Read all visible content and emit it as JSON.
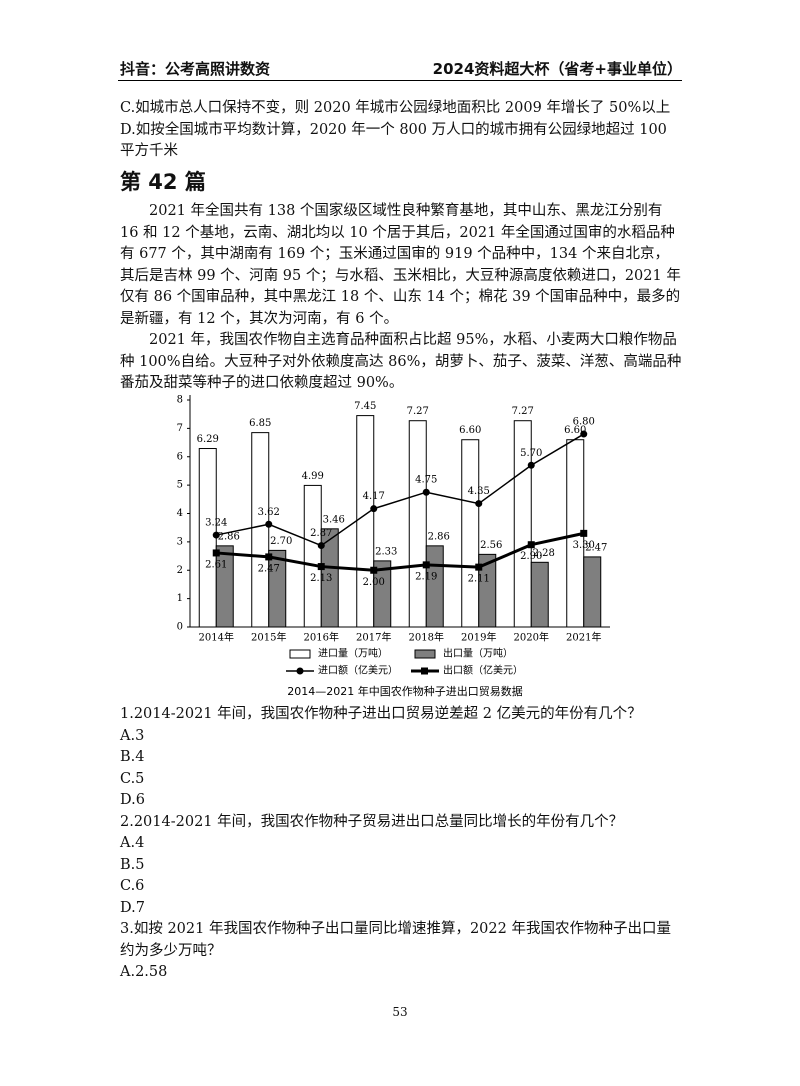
{
  "header": {
    "left": "抖音：公考高照讲数资",
    "right": "2024资料超大杯（省考+事业单位）"
  },
  "prev_options": [
    "C.如城市总人口保持不变，则 2020 年城市公园绿地面积比 2009 年增长了 50%以上",
    "D.如按全国城市平均数计算，2020 年一个 800 万人口的城市拥有公园绿地超过 100 平方千米"
  ],
  "section_title": "第 42 篇",
  "paragraphs": [
    "2021 年全国共有 138 个国家级区域性良种繁育基地，其中山东、黑龙江分别有 16 和 12 个基地，云南、湖北均以 10 个居于其后，2021 年全国通过国审的水稻品种有 677 个，其中湖南有 169 个；玉米通过国审的 919 个品种中，134 个来自北京，其后是吉林 99 个、河南 95 个；与水稻、玉米相比，大豆种源高度依赖进口，2021 年仅有 86 个国审品种，其中黑龙江 18 个、山东 14 个；棉花 39 个国审品种中，最多的是新疆，有 12 个，其次为河南，有 6 个。",
    "2021 年，我国农作物自主选育品种面积占比超 95%，水稻、小麦两大口粮作物品种 100%自给。大豆种子对外依赖度高达 86%，胡萝卜、茄子、菠菜、洋葱、高端品种番茄及甜菜等种子的进口依赖度超过 90%。"
  ],
  "chart_data": {
    "type": "bar",
    "title": "2014—2021 年中国农作物种子进出口贸易数据",
    "categories": [
      "2014年",
      "2015年",
      "2016年",
      "2017年",
      "2018年",
      "2019年",
      "2020年",
      "2021年"
    ],
    "series": [
      {
        "name": "进口量（万吨）",
        "type": "bar",
        "color": "#ffffff",
        "values": [
          6.29,
          6.85,
          4.99,
          7.45,
          7.27,
          6.6,
          7.27,
          6.6
        ],
        "value_labels": [
          "6.29",
          "6.85",
          "4.99",
          "7.45",
          "7.27",
          "6.60",
          "7.27",
          "6.60"
        ]
      },
      {
        "name": "出口量（万吨）",
        "type": "bar",
        "color": "#7f7f7f",
        "values": [
          2.86,
          2.7,
          3.46,
          2.33,
          2.86,
          2.56,
          2.28,
          2.47
        ],
        "value_labels": [
          "2.86",
          "2.70",
          "3.46",
          "2.33",
          "2.86",
          "2.56",
          "2.28",
          "2.47"
        ]
      },
      {
        "name": "进口额（亿美元）",
        "type": "line",
        "marker": "circle",
        "color": "#000000",
        "values": [
          3.24,
          3.62,
          2.87,
          4.17,
          4.75,
          4.35,
          5.7,
          6.8
        ],
        "value_labels": [
          "3.24",
          "3.62",
          "2.87",
          "4.17",
          "4.75",
          "4.35",
          "5.70",
          "6.80"
        ]
      },
      {
        "name": "出口额（亿美元）",
        "type": "line",
        "marker": "square",
        "color": "#000000",
        "values": [
          2.61,
          2.47,
          2.13,
          2.0,
          2.19,
          2.11,
          2.9,
          3.3
        ],
        "value_labels": [
          "2.61",
          "2.47",
          "2.13",
          "2.00",
          "2.19",
          "2.11",
          "2.90",
          "3.30"
        ]
      }
    ],
    "ylim": [
      0,
      8
    ],
    "yticks": [
      0,
      1,
      2,
      3,
      4,
      5,
      6,
      7,
      8
    ]
  },
  "questions": [
    {
      "stem": "1.2014-2021 年间，我国农作物种子进出口贸易逆差超 2 亿美元的年份有几个？",
      "options": [
        "A.3",
        "B.4",
        "C.5",
        "D.6"
      ]
    },
    {
      "stem": "2.2014-2021 年间，我国农作物种子贸易进出口总量同比增长的年份有几个？",
      "options": [
        "A.4",
        "B.5",
        "C.6",
        "D.7"
      ]
    },
    {
      "stem": "3.如按 2021 年我国农作物种子出口量同比增速推算，2022 年我国农作物种子出口量约为多少万吨？",
      "options": [
        "A.2.58"
      ]
    }
  ],
  "page_number": 53
}
